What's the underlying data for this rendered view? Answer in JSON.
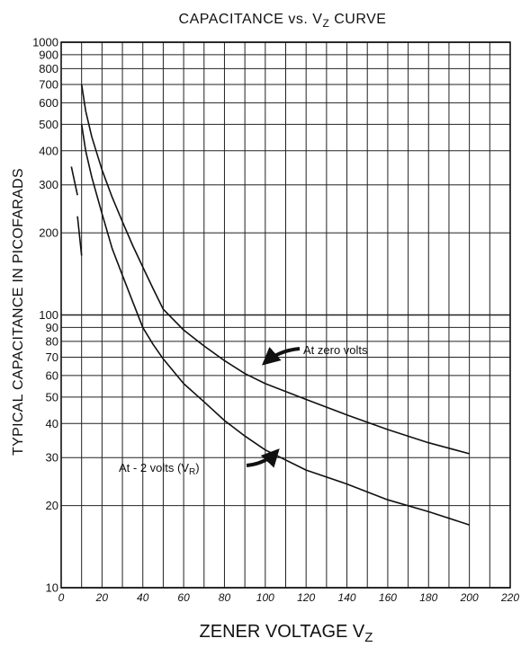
{
  "chart_data": {
    "type": "line",
    "title": "CAPACITANCE vs. VZ CURVE",
    "title_main": "CAPACITANCE vs. V",
    "title_sub": "Z",
    "title_tail": " CURVE",
    "xlabel": "ZENER VOLTAGE VZ",
    "xlabel_main": "ZENER VOLTAGE V",
    "xlabel_sub": "Z",
    "ylabel": "TYPICAL CAPACITANCE IN PICOFARADS",
    "x_scale": "linear",
    "y_scale": "log",
    "xlim": [
      0,
      220
    ],
    "ylim": [
      10,
      1000
    ],
    "grid": true,
    "x_ticks": [
      0,
      20,
      40,
      60,
      80,
      100,
      120,
      140,
      160,
      180,
      200,
      220
    ],
    "x_tick_labels": [
      "0",
      "20",
      "40",
      "60",
      "80",
      "100",
      "120",
      "140",
      "160",
      "180",
      "200",
      "220"
    ],
    "x_grid": [
      0,
      10,
      20,
      30,
      40,
      50,
      60,
      70,
      80,
      90,
      100,
      110,
      120,
      130,
      140,
      150,
      160,
      170,
      180,
      190,
      200,
      210,
      220
    ],
    "y_ticks": [
      10,
      20,
      30,
      40,
      50,
      60,
      70,
      80,
      90,
      100,
      200,
      300,
      400,
      500,
      600,
      700,
      800,
      900,
      1000
    ],
    "y_tick_labels": [
      "10",
      "20",
      "30",
      "40",
      "50",
      "60",
      "70",
      "80",
      "90",
      "100",
      "200",
      "300",
      "400",
      "500",
      "600",
      "700",
      "800",
      "900",
      "1000"
    ],
    "series": [
      {
        "name": "At zero volts",
        "points": [
          [
            5,
            350
          ],
          [
            8,
            275
          ],
          [
            10,
            700
          ],
          [
            12,
            560
          ],
          [
            15,
            450
          ],
          [
            20,
            340
          ],
          [
            25,
            270
          ],
          [
            30,
            220
          ],
          [
            35,
            180
          ],
          [
            40,
            150
          ],
          [
            45,
            125
          ],
          [
            50,
            105
          ],
          [
            60,
            88
          ],
          [
            70,
            77
          ],
          [
            80,
            68
          ],
          [
            90,
            61
          ],
          [
            100,
            56
          ],
          [
            120,
            49
          ],
          [
            140,
            43
          ],
          [
            160,
            38
          ],
          [
            180,
            34
          ],
          [
            200,
            31
          ]
        ]
      },
      {
        "name": "At - 2 volts (VR)",
        "label_main": "At - 2 volts (V",
        "label_sub": "R",
        "label_tail": ")",
        "points": [
          [
            8,
            230
          ],
          [
            10,
            165
          ],
          [
            10,
            500
          ],
          [
            12,
            400
          ],
          [
            15,
            320
          ],
          [
            20,
            235
          ],
          [
            25,
            175
          ],
          [
            30,
            140
          ],
          [
            35,
            112
          ],
          [
            40,
            90
          ],
          [
            45,
            78
          ],
          [
            50,
            69
          ],
          [
            60,
            56
          ],
          [
            70,
            48
          ],
          [
            80,
            41
          ],
          [
            90,
            36
          ],
          [
            100,
            32
          ],
          [
            120,
            27
          ],
          [
            140,
            24
          ],
          [
            160,
            21
          ],
          [
            180,
            19
          ],
          [
            200,
            17
          ]
        ]
      }
    ]
  }
}
